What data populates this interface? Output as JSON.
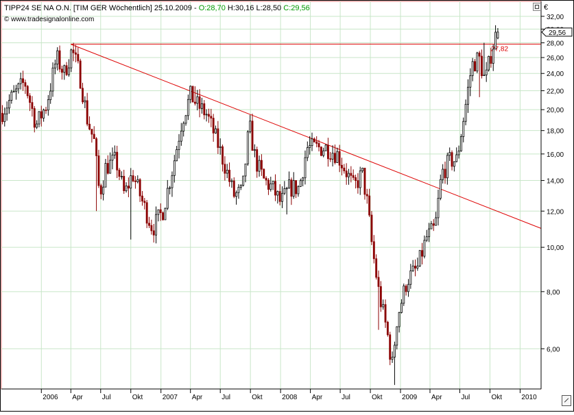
{
  "header": {
    "title": "TIPP24 SE NA O.N. [TIM GER  Wöchentlich] 25.10.2009 -",
    "o": "O:28,70",
    "hl": "H:30,16 L:28,50",
    "c": "C:29,56",
    "copyright": "© www.tradesignalonline.com",
    "currency": "€"
  },
  "colors": {
    "up": "#000000",
    "down": "#8b0000",
    "trendline": "#dd0000",
    "grid": "#c8e6c8",
    "frame": "#e07a7a",
    "ohlc_green": "#009900"
  },
  "chart_data": {
    "type": "candlestick",
    "title": "TIPP24 SE NA O.N. [TIM GER  Wöchentlich] 25.10.2009",
    "y_scale": "log",
    "ylim": [
      4.9,
      34.5
    ],
    "y_ticks": [
      6,
      8,
      10,
      12,
      14,
      16,
      18,
      20,
      22,
      24,
      26,
      28,
      30,
      32
    ],
    "y_tick_labels": [
      "6,00",
      "8,00",
      "10,00",
      "12,00",
      "14,00",
      "16,00",
      "18,00",
      "20,00",
      "22,00",
      "24,00",
      "26,00",
      "28,00",
      "30,00",
      "32,00"
    ],
    "x_range": [
      "2005-09-01",
      "2010-03-06"
    ],
    "x_ticks": [
      {
        "date": "2006-01-01",
        "label": "2006"
      },
      {
        "date": "2006-04-01",
        "label": "Apr"
      },
      {
        "date": "2006-07-01",
        "label": "Jul"
      },
      {
        "date": "2006-10-01",
        "label": "Okt"
      },
      {
        "date": "2007-01-01",
        "label": "2007"
      },
      {
        "date": "2007-04-01",
        "label": "Apr"
      },
      {
        "date": "2007-07-01",
        "label": "Jul"
      },
      {
        "date": "2007-10-01",
        "label": "Okt"
      },
      {
        "date": "2008-01-01",
        "label": "2008"
      },
      {
        "date": "2008-04-01",
        "label": "Apr"
      },
      {
        "date": "2008-07-01",
        "label": "Jul"
      },
      {
        "date": "2008-10-01",
        "label": "Okt"
      },
      {
        "date": "2009-01-01",
        "label": "2009"
      },
      {
        "date": "2009-04-01",
        "label": "Apr"
      },
      {
        "date": "2009-07-01",
        "label": "Jul"
      },
      {
        "date": "2009-10-01",
        "label": "Okt"
      },
      {
        "date": "2010-01-01",
        "label": "2010"
      }
    ],
    "grid": true,
    "trendline": {
      "from": {
        "date": "2006-04-01",
        "value": 27.8
      },
      "to": {
        "date": "2010-03-06",
        "value": 11.0
      }
    },
    "horizontal_line": {
      "value": 27.82,
      "label": "27,82"
    },
    "last_value": {
      "value": 29.56,
      "label": "29,56"
    },
    "control_points": [
      [
        "2005-09-01",
        19.5
      ],
      [
        "2005-10-01",
        21.0
      ],
      [
        "2005-11-15",
        23.0
      ],
      [
        "2005-12-20",
        18.5
      ],
      [
        "2006-01-20",
        20.5
      ],
      [
        "2006-02-20",
        26.0
      ],
      [
        "2006-03-15",
        24.0
      ],
      [
        "2006-04-08",
        27.0
      ],
      [
        "2006-05-01",
        24.0
      ],
      [
        "2006-05-25",
        19.0
      ],
      [
        "2006-06-15",
        17.0
      ],
      [
        "2006-07-01",
        13.0
      ],
      [
        "2006-07-20",
        15.0
      ],
      [
        "2006-08-20",
        15.5
      ],
      [
        "2006-09-15",
        13.0
      ],
      [
        "2006-10-10",
        14.5
      ],
      [
        "2006-11-10",
        12.5
      ],
      [
        "2006-12-10",
        11.0
      ],
      [
        "2007-01-10",
        12.0
      ],
      [
        "2007-02-10",
        15.0
      ],
      [
        "2007-03-10",
        19.0
      ],
      [
        "2007-04-05",
        21.5
      ],
      [
        "2007-04-25",
        20.5
      ],
      [
        "2007-05-25",
        19.5
      ],
      [
        "2007-06-25",
        17.0
      ],
      [
        "2007-07-20",
        15.0
      ],
      [
        "2007-08-15",
        13.0
      ],
      [
        "2007-09-10",
        13.2
      ],
      [
        "2007-10-01",
        18.5
      ],
      [
        "2007-10-20",
        15.5
      ],
      [
        "2007-11-15",
        14.0
      ],
      [
        "2007-12-10",
        13.5
      ],
      [
        "2008-01-05",
        12.5
      ],
      [
        "2008-02-01",
        13.5
      ],
      [
        "2008-03-01",
        13.5
      ],
      [
        "2008-03-25",
        16.5
      ],
      [
        "2008-04-25",
        16.5
      ],
      [
        "2008-05-25",
        16.5
      ],
      [
        "2008-06-25",
        16.0
      ],
      [
        "2008-07-20",
        14.8
      ],
      [
        "2008-08-15",
        13.5
      ],
      [
        "2008-09-10",
        14.5
      ],
      [
        "2008-09-25",
        12.5
      ],
      [
        "2008-10-10",
        10.0
      ],
      [
        "2008-10-30",
        8.0
      ],
      [
        "2008-11-25",
        6.5
      ],
      [
        "2008-12-10",
        5.5
      ],
      [
        "2008-12-25",
        7.0
      ],
      [
        "2009-01-25",
        8.5
      ],
      [
        "2009-02-25",
        9.0
      ],
      [
        "2009-03-25",
        10.5
      ],
      [
        "2009-04-20",
        11.0
      ],
      [
        "2009-05-10",
        14.5
      ],
      [
        "2009-06-05",
        15.5
      ],
      [
        "2009-06-25",
        15.5
      ],
      [
        "2009-07-20",
        20.0
      ],
      [
        "2009-08-10",
        25.0
      ],
      [
        "2009-09-01",
        26.0
      ],
      [
        "2009-09-20",
        23.0
      ],
      [
        "2009-10-10",
        27.0
      ],
      [
        "2009-10-25",
        29.56
      ]
    ],
    "extremes": [
      {
        "date": "2006-06-20",
        "low": 12.0
      },
      {
        "date": "2006-09-29",
        "low": 10.4
      },
      {
        "date": "2006-12-15",
        "low": 10.2
      },
      {
        "date": "2008-01-18",
        "low": 11.8
      },
      {
        "date": "2008-10-24",
        "low": 6.6
      },
      {
        "date": "2008-12-12",
        "low": 5.0
      },
      {
        "date": "2009-08-28",
        "low": 21.3
      },
      {
        "date": "2006-04-07",
        "high": 28.0
      },
      {
        "date": "2007-04-13",
        "high": 22.5
      },
      {
        "date": "2007-10-05",
        "high": 19.6
      },
      {
        "date": "2008-03-28",
        "high": 17.5
      },
      {
        "date": "2009-09-11",
        "high": 28.0
      },
      {
        "date": "2009-10-23",
        "high": 30.16
      }
    ],
    "last_candle": {
      "date": "2009-10-25",
      "open": 28.7,
      "high": 30.16,
      "low": 28.5,
      "close": 29.56
    }
  }
}
